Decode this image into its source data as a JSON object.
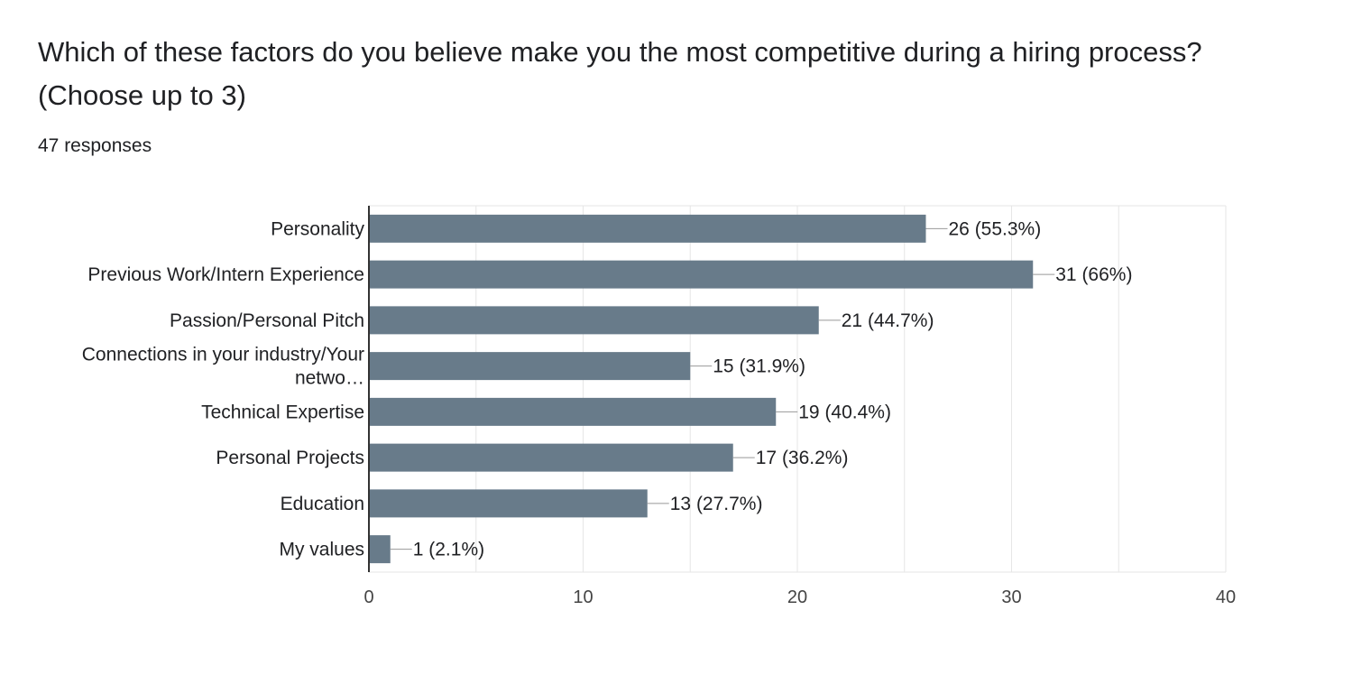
{
  "question": {
    "title": "Which of these factors do you believe make you the most competitive during a hiring process? (Choose up to 3)",
    "response_count": "47 responses"
  },
  "colors": {
    "bar": "#687b8a",
    "grid": "#e6e6e6",
    "axis": "#333333",
    "text": "#202124",
    "leader": "#999999"
  },
  "chart_data": {
    "type": "bar",
    "orientation": "horizontal",
    "categories": [
      "Personality",
      "Previous Work/Intern Experience",
      "Passion/Personal Pitch",
      "Connections in your industry/Your netwo…",
      "Technical Expertise",
      "Personal Projects",
      "Education",
      "My values"
    ],
    "category_label_lines": [
      [
        "Personality"
      ],
      [
        "Previous Work/Intern Experience"
      ],
      [
        "Passion/Personal Pitch"
      ],
      [
        "Connections in your industry/Your",
        "netwo…"
      ],
      [
        "Technical Expertise"
      ],
      [
        "Personal Projects"
      ],
      [
        "Education"
      ],
      [
        "My values"
      ]
    ],
    "values": [
      26,
      31,
      21,
      15,
      19,
      17,
      13,
      1
    ],
    "data_labels": [
      "26 (55.3%)",
      "31 (66%)",
      "21 (44.7%)",
      "15 (31.9%)",
      "19 (40.4%)",
      "17 (36.2%)",
      "13 (27.7%)",
      "1 (2.1%)"
    ],
    "xlim": [
      0,
      40
    ],
    "x_ticks": [
      0,
      10,
      20,
      30,
      40
    ],
    "grid": true,
    "legend": "none"
  }
}
